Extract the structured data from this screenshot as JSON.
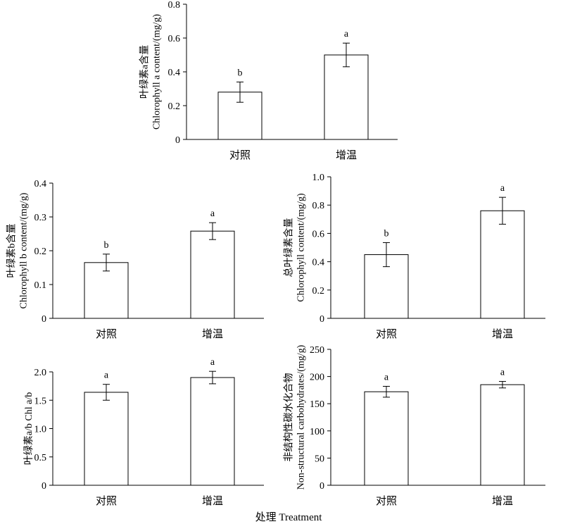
{
  "figure": {
    "xlabel": "处理 Treatment"
  },
  "chart_data": [
    {
      "type": "bar",
      "categories": [
        "对照",
        "增温"
      ],
      "values": [
        0.28,
        0.5
      ],
      "errors": [
        0.06,
        0.07
      ],
      "significance": [
        "b",
        "a"
      ],
      "ylabel_lines": [
        "叶绿素a含量",
        "Chlorophyll a content/(mg/g)"
      ],
      "ylim": [
        0,
        0.8
      ],
      "yticks": [
        0,
        0.2,
        0.4,
        0.6,
        0.8
      ],
      "ytick_labels": [
        "0",
        "0.2",
        "0.4",
        "0.6",
        "0.8"
      ]
    },
    {
      "type": "bar",
      "categories": [
        "对照",
        "增温"
      ],
      "values": [
        0.165,
        0.258
      ],
      "errors": [
        0.025,
        0.025
      ],
      "significance": [
        "b",
        "a"
      ],
      "ylabel_lines": [
        "叶绿素b含量",
        "Chlorophyll b content/(mg/g)"
      ],
      "ylim": [
        0,
        0.4
      ],
      "yticks": [
        0,
        0.1,
        0.2,
        0.3,
        0.4
      ],
      "ytick_labels": [
        "0",
        "0.1",
        "0.2",
        "0.3",
        "0.4"
      ]
    },
    {
      "type": "bar",
      "categories": [
        "对照",
        "增温"
      ],
      "values": [
        0.45,
        0.76
      ],
      "errors": [
        0.085,
        0.095
      ],
      "significance": [
        "b",
        "a"
      ],
      "ylabel_lines": [
        "总叶绿素含量",
        "Chlorophyll content/(mg/g)"
      ],
      "ylim": [
        0,
        1.0
      ],
      "yticks": [
        0,
        0.2,
        0.4,
        0.6,
        0.8,
        1.0
      ],
      "ytick_labels": [
        "0",
        "0.2",
        "0.4",
        "0.6",
        "0.8",
        "1.0"
      ]
    },
    {
      "type": "bar",
      "categories": [
        "对照",
        "增温"
      ],
      "values": [
        1.64,
        1.9
      ],
      "errors": [
        0.14,
        0.11
      ],
      "significance": [
        "a",
        "a"
      ],
      "ylabel_lines": [
        "叶绿素a/b  Chl a/b"
      ],
      "ylim": [
        0,
        2.0
      ],
      "yticks": [
        0,
        0.5,
        1.0,
        1.5,
        2.0
      ],
      "ytick_labels": [
        "0",
        "0.5",
        "1.0",
        "1.5",
        "2.0"
      ]
    },
    {
      "type": "bar",
      "categories": [
        "对照",
        "增温"
      ],
      "values": [
        172,
        185
      ],
      "errors": [
        10,
        6
      ],
      "significance": [
        "a",
        "a"
      ],
      "ylabel_lines": [
        "非结构性碳水化合物",
        "Non-structural carbohydrates/(mg/g)"
      ],
      "ylim": [
        0,
        250
      ],
      "yticks": [
        0,
        50,
        100,
        150,
        200,
        250
      ],
      "ytick_labels": [
        "0",
        "50",
        "100",
        "150",
        "200",
        "250"
      ]
    }
  ]
}
